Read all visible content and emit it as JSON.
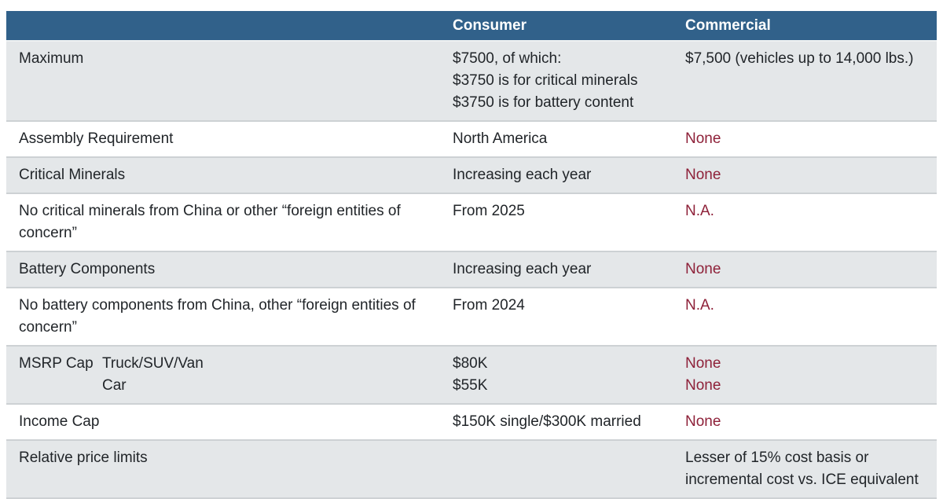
{
  "colors": {
    "header_bg": "#31618a",
    "header_text": "#ffffff",
    "header_divider": "#eef1f2",
    "row_bg": "#ffffff",
    "row_alt_bg": "#e4e7e9",
    "row_border": "#cdd1d4",
    "body_text": "#212529",
    "accent_red": "#8e2139"
  },
  "table": {
    "columns": [
      "",
      "Consumer",
      "Commercial"
    ],
    "rows": [
      {
        "label": "Maximum",
        "consumer": [
          "$7500, of which:",
          "$3750 is for critical minerals",
          "$3750 is for battery content"
        ],
        "commercial": [
          "$7,500 (vehicles up to 14,000 lbs.)"
        ]
      },
      {
        "label": "Assembly Requirement",
        "consumer": [
          "North America"
        ],
        "commercial": [
          "None"
        ]
      },
      {
        "label": "Critical Minerals",
        "consumer": [
          "Increasing each year"
        ],
        "commercial": [
          "None"
        ]
      },
      {
        "label": "No critical minerals from China or other “foreign entities of concern”",
        "consumer": [
          "From 2025"
        ],
        "commercial": [
          "N.A."
        ]
      },
      {
        "label": "Battery Components",
        "consumer": [
          "Increasing each year"
        ],
        "commercial": [
          "None"
        ]
      },
      {
        "label": "No battery components from China, other “foreign entities of concern”",
        "consumer": [
          "From 2024"
        ],
        "commercial": [
          "N.A."
        ]
      },
      {
        "label": "MSRP Cap",
        "sub_labels": [
          "Truck/SUV/Van",
          "Car"
        ],
        "consumer": [
          "$80K",
          "$55K"
        ],
        "commercial": [
          "None",
          "None"
        ]
      },
      {
        "label": "Income Cap",
        "consumer": [
          "$150K single/$300K married"
        ],
        "commercial": [
          "None"
        ]
      },
      {
        "label": "Relative price limits",
        "consumer": [],
        "commercial": [
          "Lesser of 15% cost basis or incremental cost vs. ICE equivalent"
        ]
      }
    ]
  }
}
